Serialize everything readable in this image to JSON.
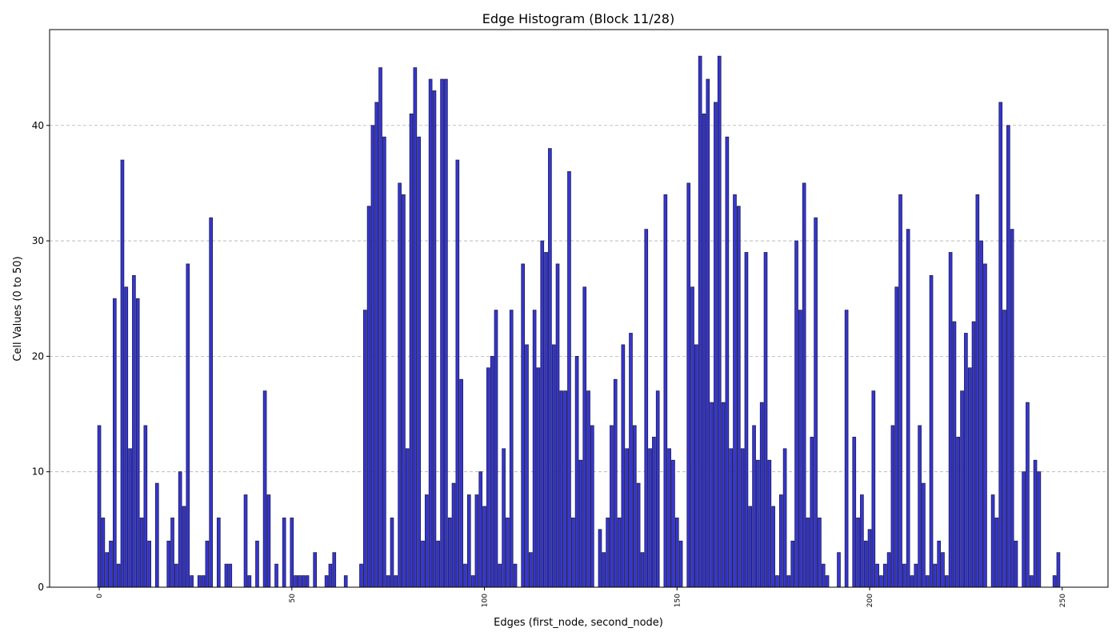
{
  "chart_data": {
    "type": "bar",
    "title": "Edge Histogram (Block 11/28)",
    "x_label": "Edges (first_node, second_node)",
    "y_label": "Cell Values (0 to 50)",
    "x": [
      0,
      1,
      2,
      3,
      4,
      5,
      6,
      7,
      8,
      9,
      10,
      11,
      12,
      13,
      14,
      15,
      16,
      17,
      18,
      19,
      20,
      21,
      22,
      23,
      24,
      25,
      26,
      27,
      28,
      29,
      30,
      31,
      32,
      33,
      34,
      35,
      36,
      37,
      38,
      39,
      40,
      41,
      42,
      43,
      44,
      45,
      46,
      47,
      48,
      49,
      50,
      51,
      52,
      53,
      54,
      55,
      56,
      57,
      58,
      59,
      60,
      61,
      62,
      63,
      64,
      65,
      66,
      67,
      68,
      69,
      70,
      71,
      72,
      73,
      74,
      75,
      76,
      77,
      78,
      79,
      80,
      81,
      82,
      83,
      84,
      85,
      86,
      87,
      88,
      89,
      90,
      91,
      92,
      93,
      94,
      95,
      96,
      97,
      98,
      99,
      100,
      101,
      102,
      103,
      104,
      105,
      106,
      107,
      108,
      109,
      110,
      111,
      112,
      113,
      114,
      115,
      116,
      117,
      118,
      119,
      120,
      121,
      122,
      123,
      124,
      125,
      126,
      127,
      128,
      129,
      130,
      131,
      132,
      133,
      134,
      135,
      136,
      137,
      138,
      139,
      140,
      141,
      142,
      143,
      144,
      145,
      146,
      147,
      148,
      149,
      150,
      151,
      152,
      153,
      154,
      155,
      156,
      157,
      158,
      159,
      160,
      161,
      162,
      163,
      164,
      165,
      166,
      167,
      168,
      169,
      170,
      171,
      172,
      173,
      174,
      175,
      176,
      177,
      178,
      179,
      180,
      181,
      182,
      183,
      184,
      185,
      186,
      187,
      188,
      189,
      190,
      191,
      192,
      193,
      194,
      195,
      196,
      197,
      198,
      199,
      200,
      201,
      202,
      203,
      204,
      205,
      206,
      207,
      208,
      209,
      210,
      211,
      212,
      213,
      214,
      215,
      216,
      217,
      218,
      219,
      220,
      221,
      222,
      223,
      224,
      225,
      226,
      227,
      228,
      229,
      230,
      231,
      232,
      233,
      234,
      235,
      236,
      237,
      238,
      239,
      240,
      241,
      242,
      243,
      244,
      245,
      246,
      247,
      248,
      249
    ],
    "values": [
      14,
      6,
      3,
      4,
      25,
      2,
      37,
      26,
      12,
      27,
      25,
      6,
      14,
      4,
      0,
      9,
      0,
      0,
      4,
      6,
      2,
      10,
      7,
      28,
      1,
      0,
      1,
      1,
      4,
      32,
      0,
      6,
      0,
      2,
      2,
      0,
      0,
      0,
      8,
      1,
      0,
      4,
      0,
      17,
      8,
      0,
      2,
      0,
      6,
      0,
      6,
      1,
      1,
      1,
      1,
      0,
      3,
      0,
      0,
      1,
      2,
      3,
      0,
      0,
      1,
      0,
      0,
      0,
      2,
      24,
      33,
      40,
      42,
      45,
      39,
      1,
      6,
      1,
      35,
      34,
      12,
      41,
      45,
      39,
      4,
      8,
      44,
      43,
      4,
      44,
      44,
      6,
      9,
      37,
      18,
      2,
      8,
      1,
      8,
      10,
      7,
      19,
      20,
      24,
      2,
      12,
      6,
      24,
      2,
      0,
      28,
      21,
      3,
      24,
      19,
      30,
      29,
      38,
      21,
      28,
      17,
      17,
      36,
      6,
      20,
      11,
      26,
      17,
      14,
      0,
      5,
      3,
      6,
      14,
      18,
      6,
      21,
      12,
      22,
      14,
      9,
      3,
      31,
      12,
      13,
      17,
      0,
      34,
      12,
      11,
      6,
      4,
      0,
      35,
      26,
      21,
      46,
      41,
      44,
      16,
      42,
      46,
      16,
      39,
      12,
      34,
      33,
      12,
      29,
      7,
      14,
      11,
      16,
      29,
      11,
      7,
      1,
      8,
      12,
      1,
      4,
      30,
      24,
      35,
      6,
      13,
      32,
      6,
      2,
      1,
      0,
      0,
      3,
      0,
      24,
      0,
      13,
      6,
      8,
      4,
      5,
      17,
      2,
      1,
      2,
      3,
      14,
      26,
      34,
      2,
      31,
      1,
      2,
      14,
      9,
      1,
      27,
      2,
      4,
      3,
      1,
      29,
      23,
      13,
      17,
      22,
      19,
      23,
      34,
      30,
      28,
      0,
      8,
      6,
      42,
      24,
      40,
      31,
      4,
      0,
      10,
      16,
      1,
      11,
      10,
      0,
      0,
      0,
      1,
      3
    ],
    "color": "#3636d2",
    "edgecolor": "#1c1c50",
    "xlim": [
      -12.89,
      261.89
    ],
    "xticks": [
      0,
      50,
      100,
      150,
      200,
      250
    ],
    "ylim": [
      0,
      48.3
    ],
    "yticks": [
      0,
      10,
      20,
      30,
      40
    ],
    "grid": "y"
  }
}
